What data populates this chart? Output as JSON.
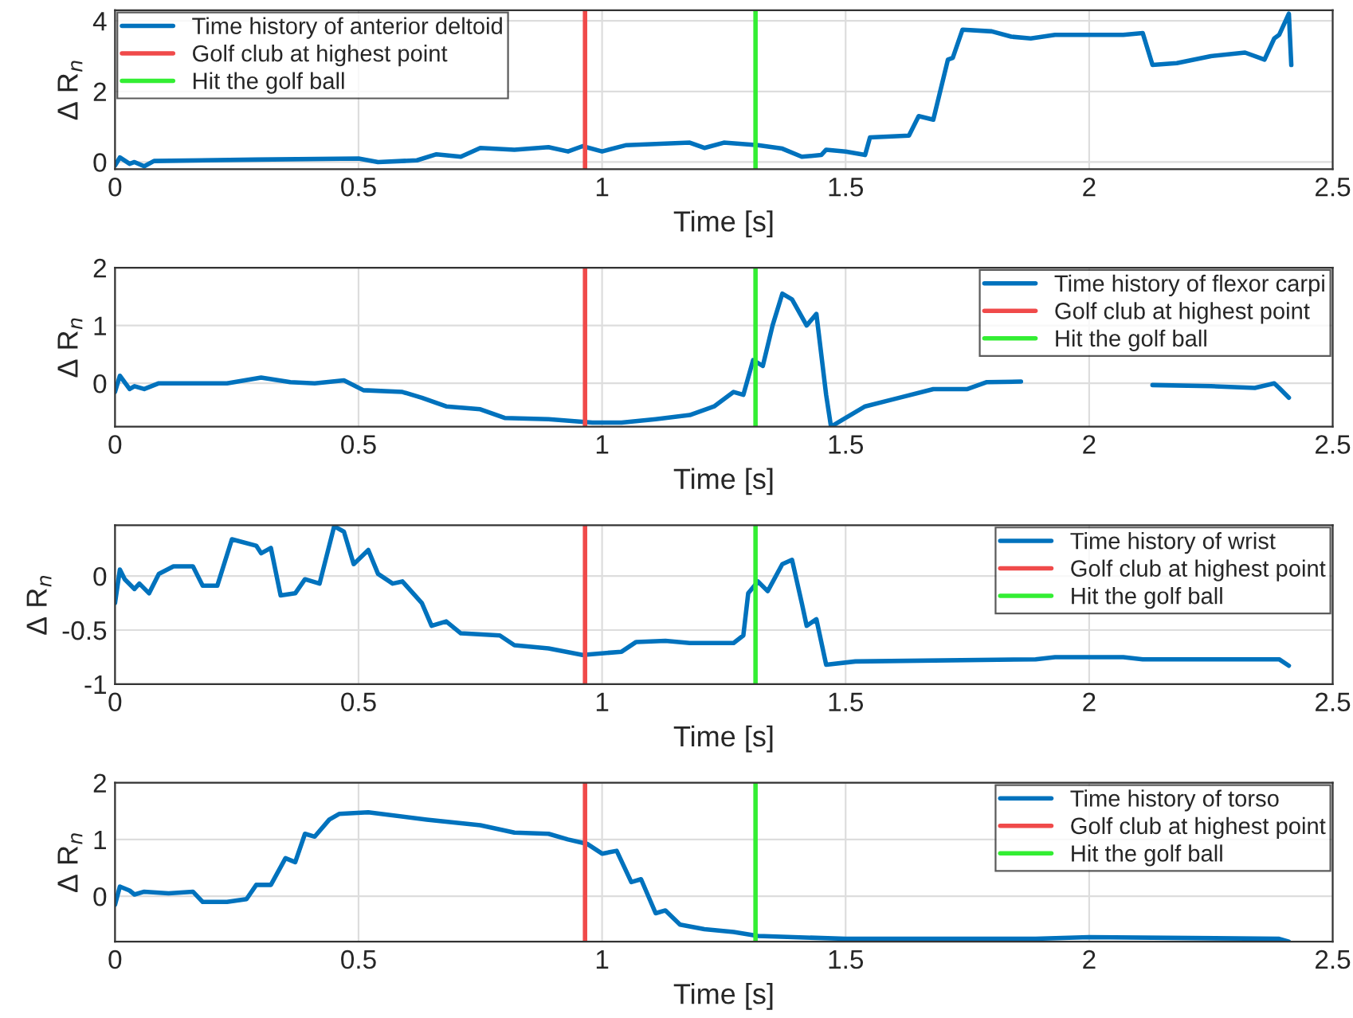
{
  "chart_data": [
    {
      "type": "line",
      "xlabel": "Time [s]",
      "ylabel": "Δ R$_{n}$",
      "xlim": [
        0,
        2.5
      ],
      "xticks": [
        0,
        0.5,
        1,
        1.5,
        2,
        2.5
      ],
      "ylim": [
        -0.2,
        4.3
      ],
      "yticks": [
        0,
        2,
        4
      ],
      "grid": true,
      "legend": "top left",
      "series": [
        {
          "name": "Time history of anterior deltoid",
          "color": "#0072bd",
          "x": [
            0,
            0.01,
            0.03,
            0.04,
            0.06,
            0.08,
            0.29,
            0.5,
            0.54,
            0.62,
            0.66,
            0.71,
            0.75,
            0.82,
            0.89,
            0.93,
            0.96,
            1.0,
            1.05,
            1.18,
            1.21,
            1.25,
            1.32,
            1.37,
            1.41,
            1.45,
            1.46,
            1.5,
            1.54,
            1.55,
            1.63,
            1.65,
            1.68,
            1.71,
            1.72,
            1.74,
            1.8,
            1.84,
            1.88,
            1.93,
            2.07,
            2.11,
            2.13,
            2.18,
            2.25,
            2.32,
            2.36,
            2.38,
            2.39,
            2.41,
            2.415
          ],
          "values": [
            -0.1,
            0.13,
            -0.05,
            0.0,
            -0.12,
            0.03,
            0.07,
            0.1,
            0.0,
            0.05,
            0.22,
            0.15,
            0.4,
            0.35,
            0.42,
            0.3,
            0.45,
            0.3,
            0.48,
            0.55,
            0.4,
            0.55,
            0.48,
            0.38,
            0.15,
            0.2,
            0.35,
            0.3,
            0.2,
            0.7,
            0.75,
            1.3,
            1.2,
            2.9,
            2.95,
            3.75,
            3.7,
            3.55,
            3.5,
            3.6,
            3.6,
            3.65,
            2.75,
            2.8,
            3.0,
            3.1,
            2.9,
            3.5,
            3.6,
            4.2,
            2.75
          ]
        },
        {
          "name": "Golf club at highest point",
          "color": "#f04a4a",
          "x": [
            0.965,
            0.965
          ],
          "values": [
            -0.2,
            4.3
          ]
        },
        {
          "name": "Hit the golf ball",
          "color": "#33ee33",
          "x": [
            1.315,
            1.315
          ],
          "values": [
            -0.2,
            4.3
          ]
        }
      ]
    },
    {
      "type": "line",
      "xlabel": "Time [s]",
      "ylabel": "Δ R$_{n}$",
      "xlim": [
        0,
        2.5
      ],
      "xticks": [
        0,
        0.5,
        1,
        1.5,
        2,
        2.5
      ],
      "ylim": [
        -0.75,
        2
      ],
      "yticks": [
        0,
        1,
        2
      ],
      "grid": true,
      "legend": "top right",
      "series": [
        {
          "name": "Time history of flexor carpi",
          "color": "#0072bd",
          "x": [
            0,
            0.01,
            0.03,
            0.04,
            0.06,
            0.09,
            0.23,
            0.3,
            0.36,
            0.41,
            0.47,
            0.51,
            0.59,
            0.63,
            0.68,
            0.75,
            0.8,
            0.89,
            0.98,
            1.04,
            1.11,
            1.18,
            1.23,
            1.27,
            1.29,
            1.31,
            1.33,
            1.35,
            1.37,
            1.39,
            1.42,
            1.44,
            1.46,
            1.47,
            1.5,
            1.54,
            1.61,
            1.68,
            1.75,
            1.79,
            1.86,
            1.95,
            2.05,
            2.13,
            2.25,
            2.34,
            2.38,
            2.39,
            2.41
          ],
          "values": [
            -0.15,
            0.13,
            -0.1,
            -0.05,
            -0.1,
            0.0,
            0.0,
            0.1,
            0.02,
            0.0,
            0.05,
            -0.12,
            -0.15,
            -0.25,
            -0.4,
            -0.45,
            -0.6,
            -0.62,
            -0.68,
            -0.68,
            -0.62,
            -0.55,
            -0.4,
            -0.15,
            -0.2,
            0.4,
            0.3,
            1.0,
            1.55,
            1.45,
            1.0,
            1.2,
            -0.2,
            -0.75,
            -0.6,
            -0.4,
            -0.25,
            -0.1,
            -0.1,
            0.02,
            0.03,
            null,
            null,
            -0.03,
            -0.05,
            -0.08,
            0.0,
            -0.08,
            -0.25
          ]
        },
        {
          "name": "Golf club at highest point",
          "color": "#f04a4a",
          "x": [
            0.965,
            0.965
          ],
          "values": [
            -0.75,
            2
          ]
        },
        {
          "name": "Hit the golf ball",
          "color": "#33ee33",
          "x": [
            1.315,
            1.315
          ],
          "values": [
            -0.75,
            2
          ]
        }
      ]
    },
    {
      "type": "line",
      "xlabel": "Time [s]",
      "ylabel": "Δ R$_{n}$",
      "xlim": [
        0,
        2.5
      ],
      "xticks": [
        0,
        0.5,
        1,
        1.5,
        2,
        2.5
      ],
      "ylim": [
        -1,
        0.47
      ],
      "yticks": [
        -1,
        -0.5,
        0
      ],
      "grid": true,
      "legend": "top right",
      "series": [
        {
          "name": "Time history of wrist",
          "color": "#0072bd",
          "x": [
            0,
            0.01,
            0.02,
            0.04,
            0.05,
            0.07,
            0.09,
            0.12,
            0.16,
            0.18,
            0.21,
            0.24,
            0.29,
            0.3,
            0.32,
            0.34,
            0.37,
            0.39,
            0.42,
            0.45,
            0.47,
            0.49,
            0.52,
            0.54,
            0.57,
            0.59,
            0.63,
            0.65,
            0.68,
            0.71,
            0.79,
            0.82,
            0.89,
            0.96,
            1.04,
            1.07,
            1.13,
            1.18,
            1.27,
            1.29,
            1.3,
            1.32,
            1.34,
            1.37,
            1.39,
            1.41,
            1.42,
            1.44,
            1.46,
            1.52,
            1.89,
            1.93,
            2.07,
            2.11,
            2.39,
            2.41
          ],
          "values": [
            -0.25,
            0.06,
            -0.03,
            -0.12,
            -0.07,
            -0.16,
            0.02,
            0.09,
            0.09,
            -0.09,
            -0.09,
            0.34,
            0.28,
            0.21,
            0.26,
            -0.18,
            -0.16,
            -0.03,
            -0.07,
            0.46,
            0.41,
            0.11,
            0.24,
            0.02,
            -0.07,
            -0.05,
            -0.25,
            -0.46,
            -0.42,
            -0.53,
            -0.55,
            -0.64,
            -0.67,
            -0.73,
            -0.7,
            -0.61,
            -0.6,
            -0.62,
            -0.62,
            -0.55,
            -0.16,
            -0.05,
            -0.14,
            0.11,
            0.15,
            -0.25,
            -0.46,
            -0.4,
            -0.82,
            -0.79,
            -0.77,
            -0.75,
            -0.75,
            -0.77,
            -0.77,
            -0.83
          ]
        },
        {
          "name": "Golf club at highest point",
          "color": "#f04a4a",
          "x": [
            0.965,
            0.965
          ],
          "values": [
            -1,
            0.47
          ]
        },
        {
          "name": "Hit the golf ball",
          "color": "#33ee33",
          "x": [
            1.315,
            1.315
          ],
          "values": [
            -1,
            0.47
          ]
        }
      ]
    },
    {
      "type": "line",
      "xlabel": "Time [s]",
      "ylabel": "Δ R$_{n}$",
      "xlim": [
        0,
        2.5
      ],
      "xticks": [
        0,
        0.5,
        1,
        1.5,
        2,
        2.5
      ],
      "ylim": [
        -0.8,
        2
      ],
      "yticks": [
        0,
        1,
        2
      ],
      "grid": true,
      "legend": "top right",
      "series": [
        {
          "name": "Time history of torso",
          "color": "#0072bd",
          "x": [
            0,
            0.01,
            0.03,
            0.04,
            0.06,
            0.11,
            0.16,
            0.18,
            0.23,
            0.27,
            0.29,
            0.32,
            0.35,
            0.37,
            0.39,
            0.41,
            0.44,
            0.46,
            0.52,
            0.64,
            0.75,
            0.82,
            0.89,
            0.93,
            0.97,
            1.0,
            1.03,
            1.06,
            1.08,
            1.11,
            1.13,
            1.16,
            1.21,
            1.27,
            1.32,
            1.5,
            1.89,
            2.0,
            2.39,
            2.41
          ],
          "values": [
            -0.15,
            0.17,
            0.1,
            0.03,
            0.08,
            0.05,
            0.08,
            -0.1,
            -0.1,
            -0.05,
            0.2,
            0.2,
            0.67,
            0.6,
            1.1,
            1.05,
            1.35,
            1.45,
            1.48,
            1.35,
            1.25,
            1.12,
            1.1,
            1.0,
            0.92,
            0.75,
            0.8,
            0.25,
            0.3,
            -0.3,
            -0.25,
            -0.5,
            -0.58,
            -0.63,
            -0.7,
            -0.75,
            -0.75,
            -0.72,
            -0.75,
            -0.8
          ]
        },
        {
          "name": "Golf club at highest point",
          "color": "#f04a4a",
          "x": [
            0.965,
            0.965
          ],
          "values": [
            -0.8,
            2
          ]
        },
        {
          "name": "Hit the golf ball",
          "color": "#33ee33",
          "x": [
            1.315,
            1.315
          ],
          "values": [
            -0.8,
            2
          ]
        }
      ]
    }
  ]
}
